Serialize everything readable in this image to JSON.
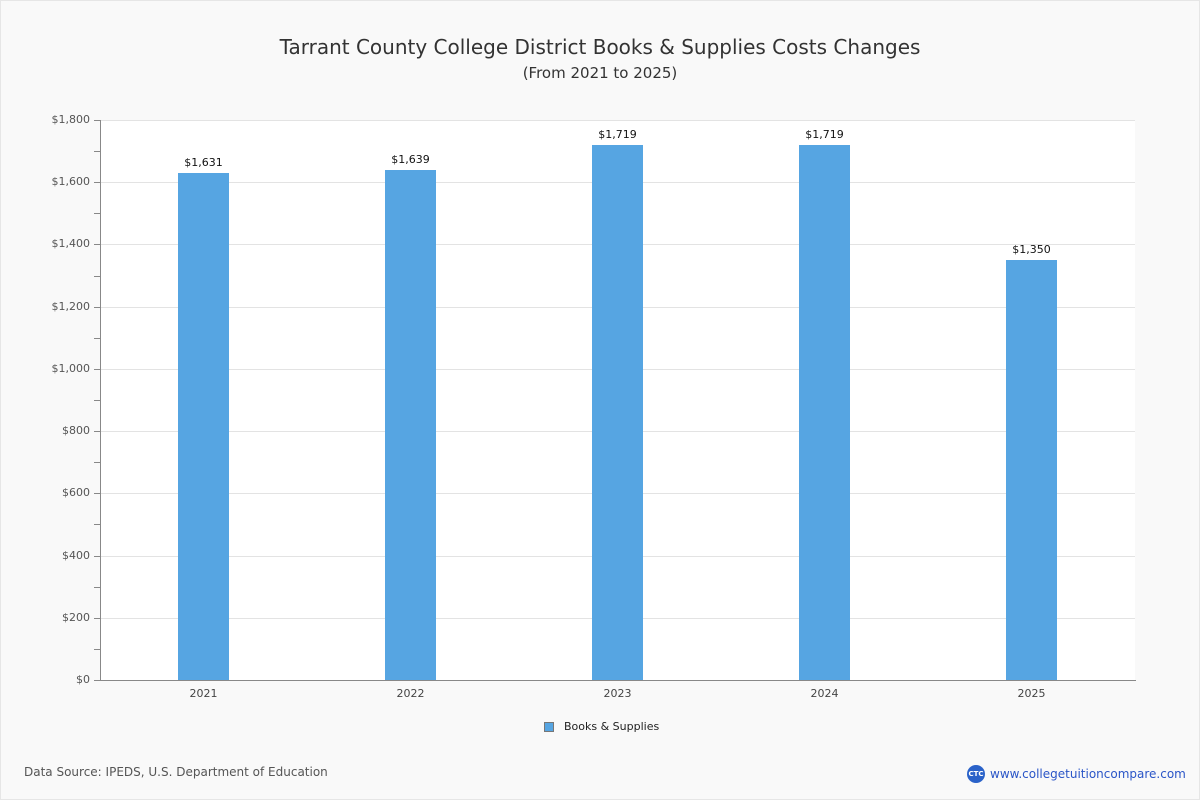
{
  "header": {
    "title": "Tarrant County College District Books & Supplies Costs Changes",
    "subtitle": "(From 2021 to 2025)"
  },
  "chart_data": {
    "type": "bar",
    "title": "Tarrant County College District Books & Supplies Costs Changes",
    "subtitle": "(From 2021 to 2025)",
    "categories": [
      "2021",
      "2022",
      "2023",
      "2024",
      "2025"
    ],
    "series": [
      {
        "name": "Books & Supplies",
        "color": "#56a5e2",
        "values": [
          1631,
          1639,
          1719,
          1719,
          1350
        ]
      }
    ],
    "value_labels": [
      "$1,631",
      "$1,639",
      "$1,719",
      "$1,719",
      "$1,350"
    ],
    "xlabel": "",
    "ylabel": "",
    "ylim": [
      0,
      1800
    ],
    "yticks": [
      "$0",
      "$200",
      "$400",
      "$600",
      "$800",
      "$1,000",
      "$1,200",
      "$1,400",
      "$1,600",
      "$1,800"
    ],
    "grid": true,
    "legend_position": "bottom"
  },
  "legend": {
    "label": "Books & Supplies"
  },
  "footer": {
    "source": "Data Source: IPEDS, U.S. Department of Education",
    "logo_text": "CTC",
    "website": "www.collegetuitioncompare.com"
  }
}
